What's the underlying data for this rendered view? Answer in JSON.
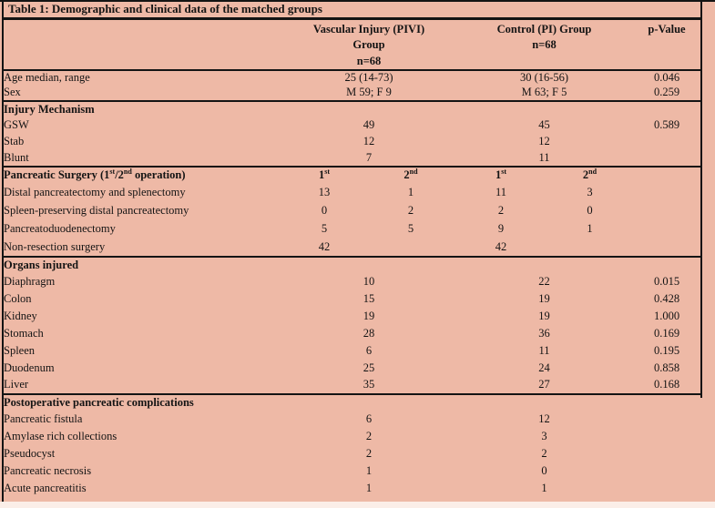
{
  "title": "Table 1: Demographic and clinical data of the matched groups",
  "header": {
    "group1": [
      "Vascular Injury (PIVI)",
      "Group",
      "n=68"
    ],
    "group2": [
      "Control (PI) Group",
      "n=68"
    ],
    "pvalue": "p-Value"
  },
  "rows": [
    {
      "label": "Age median, range",
      "v1": "25 (14-73)",
      "v2": "30 (16-56)",
      "p": "0.046"
    },
    {
      "label": "Sex",
      "v1": "M 59; F 9",
      "v2": "M 63; F 5",
      "p": "0.259"
    },
    {
      "label": "Injury Mechanism"
    },
    {
      "label": "GSW",
      "v1": "49",
      "v2": "45",
      "p": "0.589"
    },
    {
      "label": "Stab",
      "v1": "12",
      "v2": "12",
      "p": ""
    },
    {
      "label": "Blunt",
      "v1": "7",
      "v2": "11",
      "p": ""
    },
    {
      "label": "Pancreatic Surgery (1^st^/2^nd^ operation)",
      "sub": [
        "1^st^",
        "2^nd^",
        "1^st^",
        "2^nd^"
      ]
    },
    {
      "label": "Distal pancreatectomy and splenectomy",
      "a": "13",
      "b": "1",
      "c": "11",
      "d": "3"
    },
    {
      "label": "Spleen-preserving distal pancreatectomy",
      "a": "0",
      "b": "2",
      "c": "2",
      "d": "0"
    },
    {
      "label": "Pancreatoduodenectomy",
      "a": "5",
      "b": "5",
      "c": "9",
      "d": "1"
    },
    {
      "label": "Non-resection surgery",
      "a": "42",
      "b": "",
      "c": "42",
      "d": ""
    },
    {
      "label": "Organs injured"
    },
    {
      "label": "Diaphragm",
      "v1": "10",
      "v2": "22",
      "p": "0.015"
    },
    {
      "label": "Colon",
      "v1": "15",
      "v2": "19",
      "p": "0.428"
    },
    {
      "label": "Kidney",
      "v1": "19",
      "v2": "19",
      "p": "1.000"
    },
    {
      "label": "Stomach",
      "v1": "28",
      "v2": "36",
      "p": "0.169"
    },
    {
      "label": "Spleen",
      "v1": "6",
      "v2": "11",
      "p": "0.195"
    },
    {
      "label": "Duodenum",
      "v1": "25",
      "v2": "24",
      "p": "0.858"
    },
    {
      "label": "Liver",
      "v1": "35",
      "v2": "27",
      "p": "0.168"
    },
    {
      "label": "Postoperative pancreatic complications"
    },
    {
      "label": "Pancreatic fistula",
      "v1": "6",
      "v2": "12",
      "p": ""
    },
    {
      "label": "Amylase rich collections",
      "v1": "2",
      "v2": "3",
      "p": ""
    },
    {
      "label": "Pseudocyst",
      "v1": "2",
      "v2": "2",
      "p": ""
    },
    {
      "label": "Pancreatic necrosis",
      "v1": "1",
      "v2": "0",
      "p": ""
    },
    {
      "label": "Acute pancreatitis",
      "v1": "1",
      "v2": "1",
      "p": ""
    }
  ],
  "colors": {
    "background": "#eeb9a6",
    "line": "#141414",
    "text": "#141414"
  }
}
